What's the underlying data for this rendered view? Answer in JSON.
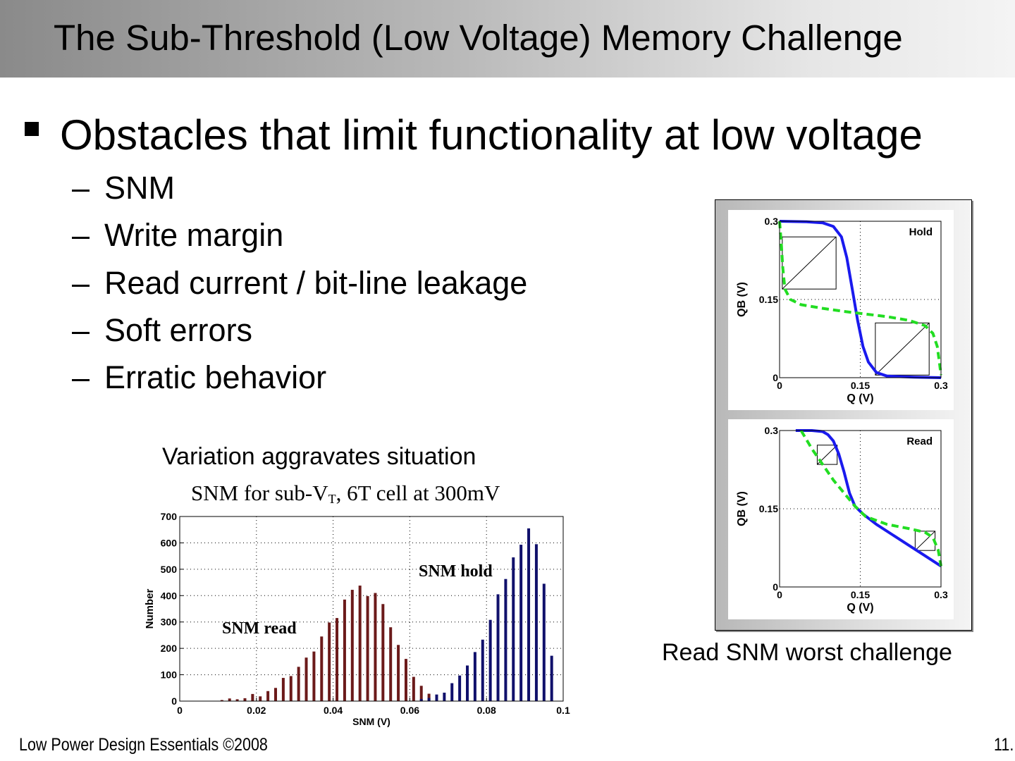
{
  "slide": {
    "title": "The Sub-Threshold (Low Voltage) Memory Challenge",
    "main_bullet": "Obstacles that limit functionality at low voltage",
    "sub_bullets": [
      "SNM",
      "Write margin",
      "Read current / bit-line leakage",
      "Soft errors",
      "Erratic behavior"
    ],
    "dash": "–",
    "caption_left": "Variation aggravates situation",
    "caption_right": "Read SNM worst challenge",
    "footer_left": "Low Power Design Essentials ©2008",
    "footer_right": "11."
  },
  "chart_data": [
    {
      "type": "bar",
      "title": "SNM for sub-V",
      "title_sub": "T",
      "title_rest": ", 6T cell at 300mV",
      "xlabel": "SNM (V)",
      "ylabel": "Number",
      "xlim": [
        0,
        0.1
      ],
      "ylim": [
        0,
        700
      ],
      "xticks": [
        "0",
        "0.02",
        "0.04",
        "0.06",
        "0.08",
        "0.1"
      ],
      "yticks": [
        "0",
        "100",
        "200",
        "300",
        "400",
        "500",
        "600",
        "700"
      ],
      "grid": true,
      "series": [
        {
          "name": "SNM read",
          "color": "#6b1a1a",
          "x": [
            0.011,
            0.013,
            0.015,
            0.017,
            0.019,
            0.021,
            0.023,
            0.025,
            0.027,
            0.029,
            0.031,
            0.033,
            0.035,
            0.037,
            0.039,
            0.041,
            0.043,
            0.045,
            0.047,
            0.049,
            0.051,
            0.053,
            0.055,
            0.057,
            0.059,
            0.061,
            0.063,
            0.065
          ],
          "values": [
            4,
            10,
            7,
            11,
            27,
            18,
            38,
            50,
            88,
            95,
            130,
            165,
            188,
            245,
            298,
            315,
            385,
            422,
            438,
            398,
            410,
            368,
            280,
            213,
            160,
            92,
            58,
            28
          ]
        },
        {
          "name": "SNM hold",
          "color": "#10106b",
          "x": [
            0.063,
            0.065,
            0.067,
            0.069,
            0.071,
            0.073,
            0.075,
            0.077,
            0.079,
            0.081,
            0.083,
            0.085,
            0.087,
            0.089,
            0.091,
            0.093,
            0.095,
            0.097
          ],
          "values": [
            8,
            12,
            25,
            32,
            68,
            97,
            135,
            186,
            233,
            308,
            405,
            463,
            545,
            593,
            655,
            595,
            445,
            172
          ]
        }
      ]
    },
    {
      "type": "line",
      "title": "Hold",
      "xlabel": "Q (V)",
      "ylabel": "QB (V)",
      "xlim": [
        0,
        0.3
      ],
      "ylim": [
        0,
        0.3
      ],
      "xticks": [
        "0",
        "0.15",
        "0.3"
      ],
      "yticks": [
        "0",
        "0.15",
        "0.3"
      ],
      "series": [
        {
          "name": "",
          "color": "#1a1aee",
          "style": "solid",
          "x": [
            0,
            0.05,
            0.08,
            0.1,
            0.115,
            0.125,
            0.135,
            0.145,
            0.155,
            0.165,
            0.18,
            0.2,
            0.25,
            0.3
          ],
          "values": [
            0.3,
            0.299,
            0.297,
            0.29,
            0.27,
            0.23,
            0.17,
            0.11,
            0.06,
            0.03,
            0.01,
            0.003,
            0.001,
            0
          ]
        },
        {
          "name": "",
          "color": "#22dd22",
          "style": "dashed",
          "x": [
            0,
            0.003,
            0.006,
            0.01,
            0.02,
            0.04,
            0.08,
            0.12,
            0.16,
            0.2,
            0.24,
            0.27,
            0.285,
            0.293,
            0.297,
            0.3
          ],
          "values": [
            0.3,
            0.26,
            0.21,
            0.17,
            0.15,
            0.14,
            0.133,
            0.127,
            0.122,
            0.117,
            0.11,
            0.1,
            0.085,
            0.06,
            0.03,
            0.005
          ]
        }
      ]
    },
    {
      "type": "line",
      "title": "Read",
      "xlabel": "Q (V)",
      "ylabel": "QB (V)",
      "xlim": [
        0,
        0.3
      ],
      "ylim": [
        0,
        0.3
      ],
      "xticks": [
        "0",
        "0.15",
        "0.3"
      ],
      "yticks": [
        "0",
        "0.15",
        "0.3"
      ],
      "series": [
        {
          "name": "",
          "color": "#1a1aee",
          "style": "solid",
          "x": [
            0.03,
            0.06,
            0.08,
            0.09,
            0.1,
            0.11,
            0.12,
            0.13,
            0.14,
            0.155,
            0.18,
            0.21,
            0.24,
            0.27,
            0.3
          ],
          "values": [
            0.3,
            0.3,
            0.298,
            0.292,
            0.28,
            0.255,
            0.22,
            0.18,
            0.155,
            0.14,
            0.12,
            0.1,
            0.08,
            0.06,
            0.04
          ]
        },
        {
          "name": "",
          "color": "#22dd22",
          "style": "dashed",
          "x": [
            0.04,
            0.06,
            0.08,
            0.1,
            0.12,
            0.14,
            0.16,
            0.2,
            0.24,
            0.27,
            0.285,
            0.295,
            0.3
          ],
          "values": [
            0.3,
            0.265,
            0.235,
            0.205,
            0.18,
            0.155,
            0.135,
            0.12,
            0.112,
            0.105,
            0.095,
            0.07,
            0.04
          ]
        }
      ]
    }
  ]
}
